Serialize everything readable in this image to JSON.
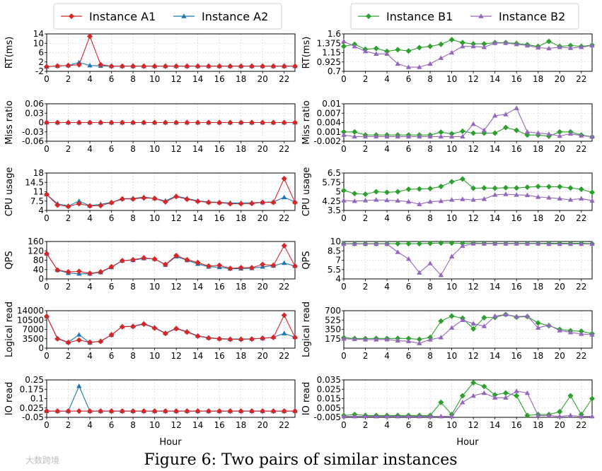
{
  "caption": "Figure 6: Two pairs of similar instances",
  "watermark": "大数跨境",
  "xlabel": "Hour",
  "x_ticks": [
    0,
    2,
    4,
    6,
    8,
    10,
    12,
    14,
    16,
    18,
    20,
    22
  ],
  "colors": {
    "A1": "#d62728",
    "A2": "#1f77b4",
    "B1": "#2ca02c",
    "B2": "#9467bd",
    "grid": "#d9d9d9"
  },
  "legends": {
    "left": [
      {
        "key": "A1",
        "label": "Instance A1",
        "marker": "diamond"
      },
      {
        "key": "A2",
        "label": "Instance A2",
        "marker": "triangle"
      }
    ],
    "right": [
      {
        "key": "B1",
        "label": "Instance B1",
        "marker": "diamond"
      },
      {
        "key": "B2",
        "label": "Instance B2",
        "marker": "triangle"
      }
    ]
  },
  "chart_data": [
    {
      "type": "line",
      "ylabel": "RT(ms)",
      "ylim": [
        -2,
        14
      ],
      "yticks": [
        "-2",
        "2",
        "6",
        "10",
        "14"
      ],
      "series": [
        {
          "key": "A1",
          "name": "Instance A1",
          "values": [
            0,
            0.3,
            0.5,
            0.8,
            13,
            0.8,
            0.2,
            0.2,
            0.2,
            0.2,
            0.2,
            0.2,
            0.2,
            0.2,
            0.2,
            0.2,
            0.2,
            0.2,
            0.2,
            0.2,
            0.2,
            0.2,
            0.2,
            0.2
          ]
        },
        {
          "key": "A2",
          "name": "Instance A2",
          "values": [
            0,
            0.3,
            0.5,
            1.8,
            0.5,
            0.3,
            0.2,
            0.2,
            0.2,
            0.2,
            0.2,
            0.2,
            0.2,
            0.2,
            0.2,
            0.2,
            0.2,
            0.2,
            0.2,
            0.2,
            0.2,
            0.2,
            0.2,
            0.2
          ]
        }
      ]
    },
    {
      "type": "line",
      "ylabel": "RT(ms)",
      "ylim": [
        0.7,
        1.6
      ],
      "yticks": [
        "0.7",
        "0.925",
        "1.15",
        "1.375",
        "1.6"
      ],
      "series": [
        {
          "key": "B1",
          "name": "Instance B1",
          "values": [
            1.3,
            1.35,
            1.23,
            1.25,
            1.18,
            1.22,
            1.19,
            1.27,
            1.3,
            1.35,
            1.46,
            1.39,
            1.36,
            1.36,
            1.39,
            1.39,
            1.37,
            1.34,
            1.3,
            1.42,
            1.3,
            1.32,
            1.3,
            1.33
          ]
        },
        {
          "key": "B2",
          "name": "Instance B2",
          "values": [
            1.42,
            1.3,
            1.18,
            1.12,
            1.12,
            0.88,
            0.8,
            0.8,
            0.88,
            1.02,
            1.15,
            1.3,
            1.3,
            1.28,
            1.38,
            1.38,
            1.35,
            1.32,
            1.27,
            1.25,
            1.28,
            1.26,
            1.28,
            1.32
          ]
        }
      ]
    },
    {
      "type": "line",
      "ylabel": "Miss ratio",
      "ylim": [
        -0.06,
        0.06
      ],
      "yticks": [
        "-0.06",
        "-0.03",
        "0",
        "0.03",
        "0.06"
      ],
      "series": [
        {
          "key": "A1",
          "name": "Instance A1",
          "values": [
            0,
            0,
            0,
            0,
            0,
            0,
            0,
            0,
            0,
            0,
            0,
            0,
            0,
            0,
            0,
            0,
            0,
            0,
            0,
            0,
            0,
            0,
            0,
            0
          ]
        },
        {
          "key": "A2",
          "name": "Instance A2",
          "values": [
            0,
            0,
            0,
            0,
            0,
            0,
            0,
            0,
            0,
            0,
            0,
            0,
            0,
            0,
            0,
            0,
            0,
            0,
            0,
            0,
            0,
            0,
            0,
            0
          ]
        }
      ]
    },
    {
      "type": "line",
      "ylabel": "Miss ratio",
      "ylim": [
        -0.002,
        0.01
      ],
      "yticks": [
        "-0.002",
        "0.001",
        "0.004",
        "0.007",
        "0.01"
      ],
      "series": [
        {
          "key": "B1",
          "name": "Instance B1",
          "values": [
            0.001,
            0.001,
            0,
            0,
            0,
            0,
            0,
            0,
            0,
            0.0009,
            0.0004,
            0.0012,
            0.0006,
            0.0006,
            0.0006,
            0.0024,
            0.0015,
            0,
            0,
            -0.0004,
            0.001,
            0.001,
            0,
            -0.0006
          ]
        },
        {
          "key": "B2",
          "name": "Instance B2",
          "values": [
            0,
            -0.0005,
            -0.0005,
            -0.0005,
            -0.0005,
            -0.0005,
            -0.0005,
            -0.0005,
            -0.0005,
            -0.0005,
            -0.0005,
            -0.0005,
            0.0035,
            0.0015,
            0.0062,
            0.0066,
            0.0086,
            0.001,
            0.0006,
            0.0003,
            -0.0003,
            0.0004,
            -0.0002,
            -0.0006
          ]
        }
      ]
    },
    {
      "type": "line",
      "ylabel": "CPU usage",
      "ylim": [
        4,
        18
      ],
      "yticks": [
        "4",
        "7.5",
        "11",
        "14.5",
        "18"
      ],
      "series": [
        {
          "key": "A1",
          "name": "Instance A1",
          "values": [
            10,
            6,
            5.5,
            6.5,
            5.7,
            5.8,
            6.9,
            8.3,
            8.3,
            8.7,
            8.5,
            7.2,
            9.2,
            8.2,
            7.4,
            7,
            6.9,
            6.5,
            6.5,
            6.6,
            7,
            7,
            15.9,
            7
          ]
        },
        {
          "key": "A2",
          "name": "Instance A2",
          "values": [
            10,
            6.5,
            5.7,
            7.5,
            5.8,
            6.3,
            7,
            8.4,
            8.5,
            9,
            8.5,
            7.6,
            9.4,
            8.5,
            7.6,
            7.2,
            7,
            6.8,
            6.8,
            6.9,
            7,
            7.2,
            8.9,
            7.2
          ]
        }
      ]
    },
    {
      "type": "line",
      "ylabel": "CPU usage",
      "ylim": [
        3.5,
        6.5
      ],
      "yticks": [
        "3.5",
        "4.25",
        "5",
        "5.75",
        "6.5"
      ],
      "series": [
        {
          "key": "B1",
          "name": "Instance B1",
          "values": [
            5.1,
            4.85,
            4.8,
            5,
            4.95,
            5,
            5.2,
            5.22,
            5.25,
            5.42,
            5.8,
            6.02,
            5.28,
            5.3,
            5.28,
            5.32,
            5.3,
            5.36,
            5.42,
            5.4,
            5.4,
            5.3,
            5.2,
            4.95
          ]
        },
        {
          "key": "B2",
          "name": "Instance B2",
          "values": [
            4.3,
            4.25,
            4.3,
            4.35,
            4.32,
            4.28,
            4.2,
            4,
            4.2,
            4.25,
            4.35,
            4.4,
            4.35,
            4.42,
            4.75,
            4.8,
            4.75,
            4.72,
            4.58,
            4.52,
            4.45,
            4.35,
            4.45,
            4.28
          ]
        }
      ]
    },
    {
      "type": "line",
      "ylabel": "QPS",
      "ylim": [
        0,
        160
      ],
      "yticks": [
        "0",
        "40",
        "80",
        "120",
        "160"
      ],
      "series": [
        {
          "key": "A1",
          "name": "Instance A1",
          "values": [
            108,
            38,
            30,
            32,
            24,
            30,
            52,
            78,
            82,
            90,
            85,
            62,
            100,
            82,
            70,
            55,
            58,
            45,
            48,
            48,
            62,
            58,
            142,
            55
          ]
        },
        {
          "key": "A2",
          "name": "Instance A2",
          "values": [
            108,
            38,
            25,
            22,
            22,
            28,
            50,
            78,
            80,
            88,
            85,
            60,
            96,
            80,
            64,
            52,
            50,
            44,
            44,
            46,
            52,
            56,
            68,
            55
          ]
        }
      ]
    },
    {
      "type": "line",
      "ylabel": "QPS",
      "ylim": [
        4,
        10
      ],
      "yticks": [
        "4",
        "5.5",
        "7",
        "8.5",
        "10"
      ],
      "series": [
        {
          "key": "B1",
          "name": "Instance B1",
          "values": [
            9.65,
            9.65,
            9.65,
            9.65,
            9.65,
            9.65,
            9.65,
            9.65,
            9.7,
            9.75,
            9.75,
            9.7,
            9.75,
            9.7,
            9.7,
            9.7,
            9.7,
            9.7,
            9.7,
            9.7,
            9.7,
            9.7,
            9.7,
            9.65
          ]
        },
        {
          "key": "B2",
          "name": "Instance B2",
          "values": [
            9.6,
            9.6,
            9.6,
            9.6,
            9.6,
            8.3,
            7.2,
            5,
            6.5,
            4.6,
            7.6,
            9.3,
            9.65,
            9.65,
            9.65,
            9.65,
            9.65,
            9.65,
            9.65,
            9.6,
            9.6,
            9.6,
            9.6,
            9.6
          ]
        }
      ]
    },
    {
      "type": "line",
      "ylabel": "Logical read",
      "ylim": [
        0,
        14000
      ],
      "yticks": [
        "0",
        "3500",
        "7000",
        "10500",
        "14000"
      ],
      "series": [
        {
          "key": "A1",
          "name": "Instance A1",
          "values": [
            11900,
            3500,
            2100,
            3000,
            2200,
            2500,
            5000,
            8000,
            8100,
            9000,
            7500,
            5500,
            7300,
            6000,
            4500,
            3800,
            3500,
            3300,
            3300,
            3400,
            3700,
            4000,
            12300,
            4000
          ]
        },
        {
          "key": "A2",
          "name": "Instance A2",
          "values": [
            11900,
            3700,
            2200,
            5000,
            2000,
            2700,
            4900,
            8100,
            8200,
            9200,
            7700,
            5600,
            7400,
            6200,
            4600,
            3900,
            3600,
            3400,
            3400,
            3500,
            3700,
            4100,
            5500,
            4100
          ]
        }
      ]
    },
    {
      "type": "line",
      "ylabel": "Logical read",
      "ylim": [
        0,
        700
      ],
      "yticks": [
        "175",
        "350",
        "525",
        "700"
      ],
      "series": [
        {
          "key": "B1",
          "name": "Instance B1",
          "values": [
            195,
            180,
            178,
            182,
            180,
            182,
            180,
            165,
            200,
            505,
            600,
            560,
            360,
            570,
            575,
            630,
            580,
            590,
            470,
            420,
            350,
            325,
            315,
            270
          ]
        },
        {
          "key": "B2",
          "name": "Instance B2",
          "values": [
            175,
            168,
            160,
            160,
            162,
            140,
            130,
            90,
            160,
            200,
            380,
            525,
            460,
            410,
            600,
            630,
            590,
            600,
            380,
            430,
            330,
            295,
            265,
            250
          ]
        }
      ]
    },
    {
      "type": "line",
      "ylabel": "IO read",
      "ylim": [
        -0.05,
        0.25
      ],
      "yticks": [
        "-0.05",
        "0.025",
        "0.1",
        "0.175",
        "0.25"
      ],
      "series": [
        {
          "key": "A1",
          "name": "Instance A1",
          "values": [
            0,
            0,
            0,
            0,
            0,
            0,
            0,
            0,
            0,
            0,
            0,
            0,
            0,
            0,
            0,
            0,
            0,
            0,
            0,
            0,
            0,
            0,
            0,
            0
          ]
        },
        {
          "key": "A2",
          "name": "Instance A2",
          "values": [
            0,
            0,
            0,
            0.2,
            0,
            0,
            0,
            0,
            0,
            0,
            0,
            0,
            0,
            0,
            0,
            0,
            0,
            0,
            0,
            0,
            0,
            0,
            0,
            0
          ]
        }
      ]
    },
    {
      "type": "line",
      "ylabel": "IO read",
      "ylim": [
        -0.005,
        0.035
      ],
      "yticks": [
        "-0.005",
        "0.005",
        "0.015",
        "0.025",
        "0.035"
      ],
      "series": [
        {
          "key": "B1",
          "name": "Instance B1",
          "values": [
            -0.003,
            -0.002,
            -0.003,
            -0.003,
            -0.003,
            -0.003,
            -0.003,
            -0.003,
            -0.003,
            0.011,
            -0.002,
            0.018,
            0.032,
            0.028,
            0.019,
            0.021,
            0.018,
            -0.003,
            -0.002,
            -0.002,
            0.001,
            0.018,
            -0.002,
            0.015
          ]
        },
        {
          "key": "B2",
          "name": "Instance B2",
          "values": [
            -0.004,
            -0.004,
            -0.004,
            -0.004,
            -0.004,
            -0.004,
            -0.004,
            -0.004,
            -0.004,
            -0.004,
            -0.004,
            0.011,
            0.018,
            0.021,
            0.016,
            0.016,
            0.023,
            0.021,
            -0.003,
            -0.003,
            -0.004,
            -0.003,
            -0.004,
            -0.004
          ]
        }
      ]
    }
  ]
}
